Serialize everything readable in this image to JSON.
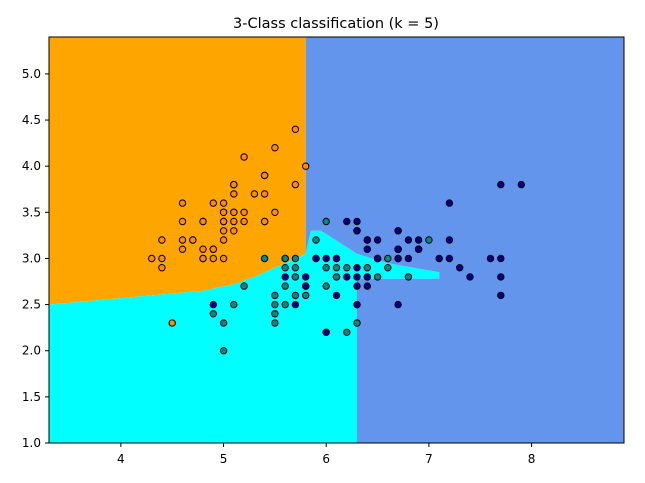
{
  "chart_data": {
    "type": "scatter",
    "title": "3-Class classification (k = 5)",
    "xlabel": "",
    "ylabel": "",
    "xlim": [
      3.3,
      8.9
    ],
    "ylim": [
      1.0,
      5.4
    ],
    "x_ticks": [
      4,
      5,
      6,
      7,
      8
    ],
    "y_ticks": [
      1.0,
      1.5,
      2.0,
      2.5,
      3.0,
      3.5,
      4.0,
      4.5,
      5.0
    ],
    "x_tick_labels": [
      "4",
      "5",
      "6",
      "7",
      "8"
    ],
    "y_tick_labels": [
      "1.0",
      "1.5",
      "2.0",
      "2.5",
      "3.0",
      "3.5",
      "4.0",
      "4.5",
      "5.0"
    ],
    "grid": false,
    "region_colors": {
      "class_0": "#FFA500",
      "class_1": "#00FFFF",
      "class_2": "#6495ED"
    },
    "point_colors": {
      "class_0": "#FF8C00",
      "class_1": "#008B8B",
      "class_2": "#00008B"
    },
    "decision_regions": [
      {
        "class": "class_0",
        "polygon": [
          [
            3.3,
            5.4
          ],
          [
            5.8,
            5.4
          ],
          [
            5.8,
            3.05
          ],
          [
            5.5,
            2.9
          ],
          [
            5.3,
            2.8
          ],
          [
            5.1,
            2.72
          ],
          [
            4.8,
            2.65
          ],
          [
            4.3,
            2.6
          ],
          [
            3.8,
            2.55
          ],
          [
            3.3,
            2.5
          ]
        ]
      },
      {
        "class": "class_1",
        "polygon": [
          [
            3.3,
            2.5
          ],
          [
            3.8,
            2.55
          ],
          [
            4.3,
            2.6
          ],
          [
            4.8,
            2.65
          ],
          [
            5.1,
            2.72
          ],
          [
            5.3,
            2.8
          ],
          [
            5.5,
            2.9
          ],
          [
            5.8,
            3.05
          ],
          [
            5.85,
            3.3
          ],
          [
            5.95,
            3.3
          ],
          [
            6.3,
            3.05
          ],
          [
            6.6,
            2.95
          ],
          [
            7.1,
            2.85
          ],
          [
            7.1,
            2.78
          ],
          [
            6.3,
            2.78
          ],
          [
            6.3,
            1.0
          ],
          [
            3.3,
            1.0
          ]
        ]
      },
      {
        "class": "class_2",
        "polygon": [
          [
            5.8,
            5.4
          ],
          [
            8.9,
            5.4
          ],
          [
            8.9,
            1.0
          ],
          [
            6.3,
            1.0
          ],
          [
            6.3,
            2.78
          ],
          [
            7.1,
            2.78
          ],
          [
            7.1,
            2.85
          ],
          [
            6.6,
            2.95
          ],
          [
            6.3,
            3.05
          ],
          [
            5.95,
            3.3
          ],
          [
            5.85,
            3.3
          ],
          [
            5.8,
            3.05
          ]
        ]
      }
    ],
    "series": [
      {
        "class": "class_0",
        "points": [
          [
            5.1,
            3.5
          ],
          [
            4.9,
            3.0
          ],
          [
            4.7,
            3.2
          ],
          [
            4.6,
            3.1
          ],
          [
            5.0,
            3.6
          ],
          [
            5.4,
            3.9
          ],
          [
            4.6,
            3.4
          ],
          [
            5.0,
            3.4
          ],
          [
            4.4,
            2.9
          ],
          [
            4.9,
            3.1
          ],
          [
            5.4,
            3.7
          ],
          [
            4.8,
            3.4
          ],
          [
            4.8,
            3.0
          ],
          [
            4.3,
            3.0
          ],
          [
            5.8,
            4.0
          ],
          [
            5.7,
            4.4
          ],
          [
            5.4,
            3.9
          ],
          [
            5.1,
            3.5
          ],
          [
            5.7,
            3.8
          ],
          [
            5.1,
            3.8
          ],
          [
            5.4,
            3.4
          ],
          [
            5.1,
            3.7
          ],
          [
            4.6,
            3.6
          ],
          [
            5.1,
            3.3
          ],
          [
            4.8,
            3.4
          ],
          [
            5.0,
            3.0
          ],
          [
            5.0,
            3.4
          ],
          [
            5.2,
            3.5
          ],
          [
            5.2,
            3.4
          ],
          [
            4.7,
            3.2
          ],
          [
            4.8,
            3.1
          ],
          [
            5.4,
            3.4
          ],
          [
            5.2,
            4.1
          ],
          [
            5.5,
            4.2
          ],
          [
            4.9,
            3.1
          ],
          [
            5.0,
            3.2
          ],
          [
            5.5,
            3.5
          ],
          [
            4.9,
            3.6
          ],
          [
            4.4,
            3.0
          ],
          [
            5.1,
            3.4
          ],
          [
            5.0,
            3.5
          ],
          [
            4.5,
            2.3
          ],
          [
            4.4,
            3.2
          ],
          [
            5.0,
            3.5
          ],
          [
            5.1,
            3.8
          ],
          [
            4.8,
            3.0
          ],
          [
            5.1,
            3.8
          ],
          [
            4.6,
            3.2
          ],
          [
            5.3,
            3.7
          ],
          [
            5.0,
            3.3
          ]
        ]
      },
      {
        "class": "class_1",
        "points": [
          [
            7.0,
            3.2
          ],
          [
            6.4,
            3.2
          ],
          [
            6.9,
            3.1
          ],
          [
            5.5,
            2.3
          ],
          [
            6.5,
            2.8
          ],
          [
            5.7,
            2.8
          ],
          [
            6.3,
            3.3
          ],
          [
            4.9,
            2.4
          ],
          [
            6.6,
            2.9
          ],
          [
            5.2,
            2.7
          ],
          [
            5.0,
            2.0
          ],
          [
            5.9,
            3.0
          ],
          [
            6.0,
            2.2
          ],
          [
            6.1,
            2.9
          ],
          [
            5.6,
            2.9
          ],
          [
            6.7,
            3.1
          ],
          [
            5.6,
            3.0
          ],
          [
            5.8,
            2.7
          ],
          [
            6.2,
            2.2
          ],
          [
            5.6,
            2.5
          ],
          [
            5.9,
            3.2
          ],
          [
            6.1,
            2.8
          ],
          [
            6.3,
            2.5
          ],
          [
            6.1,
            2.8
          ],
          [
            6.4,
            2.9
          ],
          [
            6.6,
            3.0
          ],
          [
            6.8,
            2.8
          ],
          [
            6.7,
            3.0
          ],
          [
            6.0,
            2.9
          ],
          [
            5.7,
            2.6
          ],
          [
            5.5,
            2.4
          ],
          [
            5.5,
            2.4
          ],
          [
            5.8,
            2.7
          ],
          [
            6.0,
            2.7
          ],
          [
            5.4,
            3.0
          ],
          [
            6.0,
            3.4
          ],
          [
            6.7,
            3.1
          ],
          [
            6.3,
            2.3
          ],
          [
            5.6,
            3.0
          ],
          [
            5.5,
            2.5
          ],
          [
            5.5,
            2.6
          ],
          [
            6.1,
            3.0
          ],
          [
            5.8,
            2.6
          ],
          [
            5.0,
            2.3
          ],
          [
            5.6,
            2.7
          ],
          [
            5.7,
            3.0
          ],
          [
            5.7,
            2.9
          ],
          [
            6.2,
            2.9
          ],
          [
            5.1,
            2.5
          ],
          [
            5.7,
            2.8
          ]
        ]
      },
      {
        "class": "class_2",
        "points": [
          [
            6.3,
            3.3
          ],
          [
            5.8,
            2.7
          ],
          [
            7.1,
            3.0
          ],
          [
            6.3,
            2.9
          ],
          [
            6.5,
            3.0
          ],
          [
            7.6,
            3.0
          ],
          [
            4.9,
            2.5
          ],
          [
            7.3,
            2.9
          ],
          [
            6.7,
            2.5
          ],
          [
            7.2,
            3.6
          ],
          [
            6.5,
            3.2
          ],
          [
            6.4,
            2.7
          ],
          [
            6.8,
            3.0
          ],
          [
            5.7,
            2.5
          ],
          [
            5.8,
            2.8
          ],
          [
            6.4,
            3.2
          ],
          [
            6.5,
            3.0
          ],
          [
            7.7,
            3.8
          ],
          [
            7.7,
            2.6
          ],
          [
            6.0,
            2.2
          ],
          [
            6.9,
            3.2
          ],
          [
            5.6,
            2.8
          ],
          [
            7.7,
            2.8
          ],
          [
            6.3,
            2.7
          ],
          [
            6.7,
            3.3
          ],
          [
            7.2,
            3.2
          ],
          [
            6.2,
            2.8
          ],
          [
            6.1,
            3.0
          ],
          [
            6.4,
            2.8
          ],
          [
            7.2,
            3.0
          ],
          [
            7.4,
            2.8
          ],
          [
            7.9,
            3.8
          ],
          [
            6.4,
            2.8
          ],
          [
            6.3,
            2.8
          ],
          [
            6.1,
            2.6
          ],
          [
            7.7,
            3.0
          ],
          [
            6.3,
            3.4
          ],
          [
            6.4,
            3.1
          ],
          [
            6.0,
            3.0
          ],
          [
            6.9,
            3.1
          ],
          [
            6.7,
            3.1
          ],
          [
            6.9,
            3.1
          ],
          [
            5.8,
            2.7
          ],
          [
            6.8,
            3.2
          ],
          [
            6.7,
            3.3
          ],
          [
            6.7,
            3.0
          ],
          [
            6.3,
            2.5
          ],
          [
            6.5,
            3.0
          ],
          [
            6.2,
            3.4
          ],
          [
            5.9,
            3.0
          ]
        ]
      }
    ]
  }
}
